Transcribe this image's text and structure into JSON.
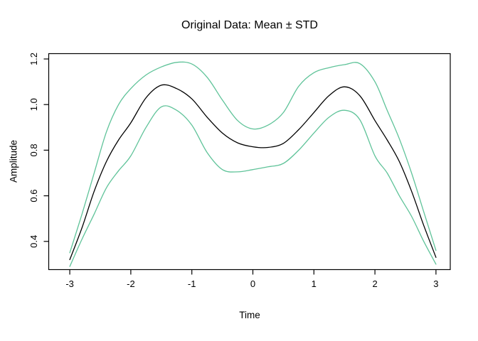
{
  "chart_data": {
    "type": "line",
    "title": "Original Data: Mean ± STD",
    "xlabel": "Time",
    "ylabel": "Amplitude",
    "xlim": [
      -3.24,
      3.24
    ],
    "ylim": [
      0.28,
      1.22
    ],
    "grid": false,
    "legend": "none",
    "x_ticks": [
      -3,
      -2,
      -1,
      0,
      1,
      2,
      3
    ],
    "x_tick_labels": [
      "-3",
      "-2",
      "-1",
      "0",
      "1",
      "2",
      "3"
    ],
    "y_ticks": [
      0.4,
      0.6,
      0.8,
      1.0,
      1.2
    ],
    "y_tick_labels": [
      "0.4",
      "0.6",
      "0.8",
      "1.0",
      "1.2"
    ],
    "colors": {
      "mean": "#000000",
      "std_band": "#5fc399",
      "axis": "#000000",
      "background": "#ffffff"
    },
    "x": [
      -3,
      -2.8,
      -2.6,
      -2.4,
      -2.2,
      -2,
      -1.75,
      -1.5,
      -1.25,
      -1,
      -0.75,
      -0.5,
      -0.25,
      0,
      0.25,
      0.5,
      0.75,
      1,
      1.25,
      1.5,
      1.75,
      2,
      2.2,
      2.4,
      2.6,
      2.8,
      3
    ],
    "series": [
      {
        "name": "mean",
        "color_key": "mean",
        "values": [
          0.32,
          0.46,
          0.62,
          0.75,
          0.845,
          0.92,
          1.03,
          1.085,
          1.07,
          1.025,
          0.945,
          0.875,
          0.832,
          0.815,
          0.812,
          0.83,
          0.89,
          0.965,
          1.04,
          1.078,
          1.04,
          0.93,
          0.845,
          0.75,
          0.62,
          0.47,
          0.33
        ]
      },
      {
        "name": "mean_plus_std",
        "color_key": "std_band",
        "values": [
          0.35,
          0.52,
          0.7,
          0.88,
          1.0,
          1.07,
          1.13,
          1.165,
          1.185,
          1.178,
          1.12,
          1.02,
          0.93,
          0.893,
          0.91,
          0.965,
          1.08,
          1.14,
          1.162,
          1.175,
          1.18,
          1.1,
          0.975,
          0.85,
          0.7,
          0.53,
          0.36
        ]
      },
      {
        "name": "mean_minus_std",
        "color_key": "std_band",
        "values": [
          0.29,
          0.41,
          0.52,
          0.635,
          0.71,
          0.775,
          0.9,
          0.99,
          0.975,
          0.91,
          0.79,
          0.715,
          0.705,
          0.715,
          0.727,
          0.742,
          0.8,
          0.875,
          0.945,
          0.975,
          0.935,
          0.775,
          0.7,
          0.6,
          0.51,
          0.4,
          0.3
        ]
      }
    ]
  }
}
